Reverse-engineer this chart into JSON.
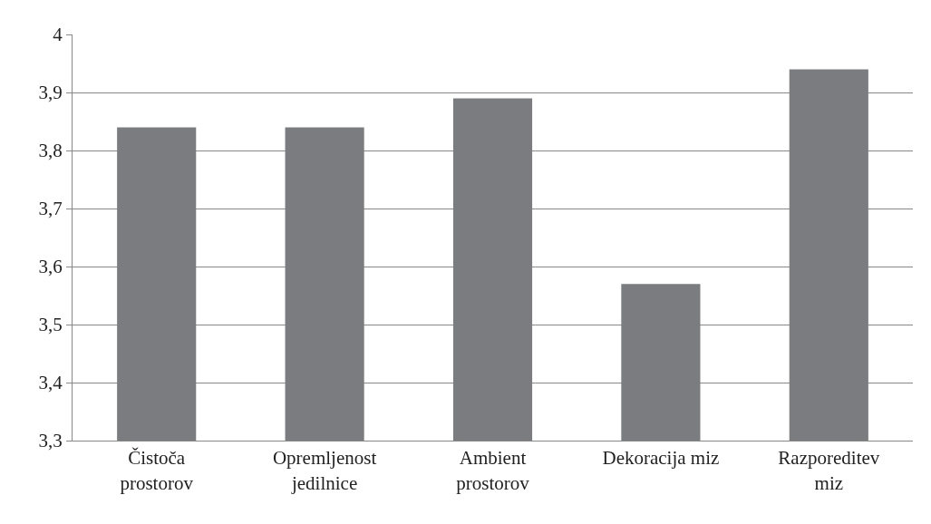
{
  "chart_data": {
    "type": "bar",
    "categories": [
      "Čistoča\nprostorov",
      "Opremljenost\njedilnice",
      "Ambient\nprostorov",
      "Dekoracija miz",
      "Razporeditev\nmiz"
    ],
    "values": [
      3.84,
      3.84,
      3.89,
      3.57,
      3.94
    ],
    "color": "#7b7c80",
    "ylim": [
      3.3,
      4
    ],
    "yticks": [
      {
        "value": 3.3,
        "label": "3,3"
      },
      {
        "value": 3.4,
        "label": "3,4"
      },
      {
        "value": 3.5,
        "label": "3,5"
      },
      {
        "value": 3.6,
        "label": "3,6"
      },
      {
        "value": 3.7,
        "label": "3,7"
      },
      {
        "value": 3.8,
        "label": "3,8"
      },
      {
        "value": 3.9,
        "label": "3,9"
      },
      4
    ],
    "grid": "y"
  }
}
